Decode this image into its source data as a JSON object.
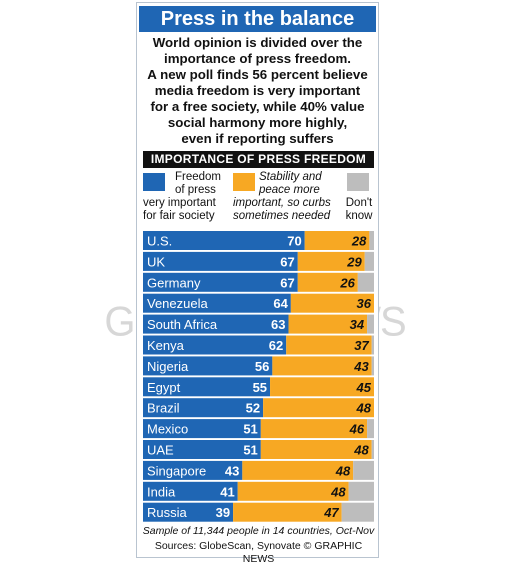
{
  "header": {
    "title": "Press in the balance",
    "intro": [
      "World opinion is divided over the",
      "importance of press freedom.",
      "A new poll finds 56 percent believe",
      "media freedom is very important",
      "for a free society, while 40% value",
      "social harmony more highly,",
      "even if reporting suffers"
    ]
  },
  "section_title": "IMPORTANCE OF PRESS FREEDOM",
  "legend": {
    "freedom": [
      "Freedom",
      "of press",
      "very important",
      "for fair society"
    ],
    "stability": [
      "Stability and",
      "peace more",
      "important, so curbs",
      "sometimes needed"
    ],
    "dontknow": [
      "Don't",
      "know"
    ]
  },
  "colors": {
    "freedom": "#1f66b4",
    "stability": "#f7a823",
    "dontknow": "#bdbdbd",
    "title_bg": "#1f66b4"
  },
  "watermark": "GRAPHIC NEWS",
  "chart_data": {
    "type": "bar",
    "orientation": "horizontal",
    "stacked": true,
    "xlim": [
      0,
      100
    ],
    "categories": [
      "U.S.",
      "UK",
      "Germany",
      "Venezuela",
      "South Africa",
      "Kenya",
      "Nigeria",
      "Egypt",
      "Brazil",
      "Mexico",
      "UAE",
      "Singapore",
      "India",
      "Russia"
    ],
    "series": [
      {
        "name": "Freedom of press very important for fair society",
        "values": [
          70,
          67,
          67,
          64,
          63,
          62,
          56,
          55,
          52,
          51,
          51,
          43,
          41,
          39
        ]
      },
      {
        "name": "Stability and peace more important, so curbs sometimes needed",
        "values": [
          28,
          29,
          26,
          36,
          34,
          37,
          43,
          45,
          48,
          46,
          48,
          48,
          48,
          47
        ]
      },
      {
        "name": "Don't know",
        "values": [
          2,
          4,
          7,
          0,
          3,
          1,
          1,
          0,
          0,
          3,
          1,
          9,
          11,
          14
        ]
      }
    ]
  },
  "footer": {
    "note": "Sample of 11,344 people in 14 countries, Oct-Nov",
    "sources": "Sources: GlobeScan, Synovate  © GRAPHIC NEWS"
  }
}
